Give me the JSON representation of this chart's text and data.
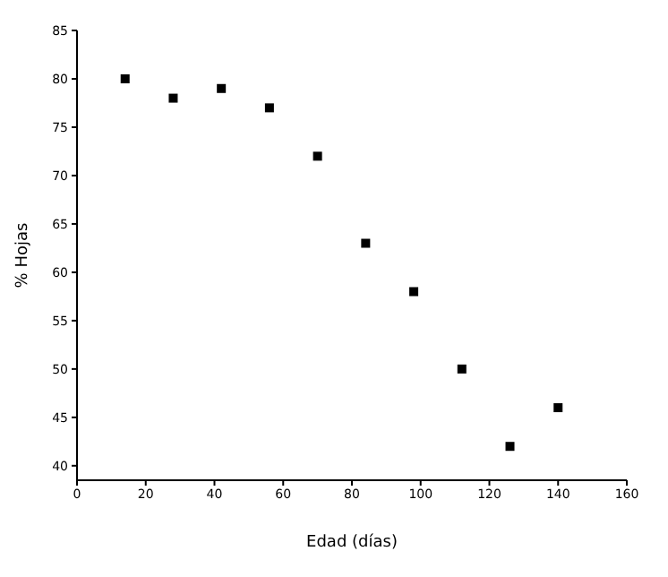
{
  "chart_data": {
    "type": "scatter",
    "xlabel": "Edad (días)",
    "ylabel": "% Hojas",
    "x": [
      14,
      28,
      42,
      56,
      70,
      84,
      98,
      112,
      126,
      140
    ],
    "values": [
      80,
      78,
      79,
      77,
      72,
      63,
      58,
      50,
      42,
      46
    ],
    "color": "#000000",
    "marker": "square",
    "xlim": [
      0,
      160
    ],
    "xticks": [
      0,
      20,
      40,
      60,
      80,
      100,
      120,
      140,
      160
    ],
    "ylim": [
      38.5,
      85
    ],
    "yticks": [
      40,
      45,
      50,
      55,
      60,
      65,
      70,
      75,
      80,
      85
    ],
    "grid": false,
    "legend": false
  }
}
